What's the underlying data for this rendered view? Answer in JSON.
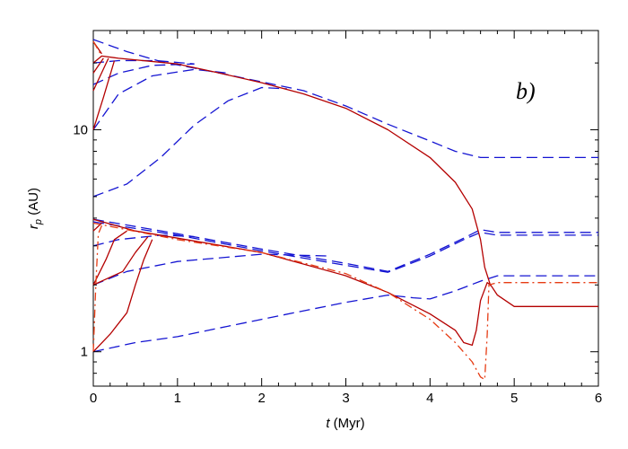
{
  "chart_data": {
    "type": "line",
    "panel_label": "b)",
    "xlabel_var": "t",
    "xlabel_unit": " (Myr)",
    "ylabel_var": "r",
    "ylabel_sub": "p",
    "ylabel_unit": " (AU)",
    "xlim": [
      0,
      6
    ],
    "ylim": [
      0.7,
      28
    ],
    "yscale": "log",
    "x_ticks": [
      "0",
      "1",
      "2",
      "3",
      "4",
      "5",
      "6"
    ],
    "y_ticks": [
      {
        "value": 1,
        "label": "1"
      },
      {
        "value": 10,
        "label": "10"
      }
    ],
    "colors": {
      "dashed": "#1414d2",
      "solid": "#b40000",
      "dashdot": "#e63c14"
    },
    "series": [
      {
        "style": "dashed",
        "points": [
          [
            0,
            25.5
          ],
          [
            0.4,
            22.5
          ],
          [
            0.8,
            20.3
          ],
          [
            1.5,
            18.0
          ],
          [
            2.5,
            15.0
          ],
          [
            3.0,
            12.8
          ],
          [
            3.5,
            10.6
          ],
          [
            4.0,
            8.9
          ],
          [
            4.3,
            8.0
          ],
          [
            4.6,
            7.5
          ],
          [
            5.0,
            7.5
          ],
          [
            6.0,
            7.5
          ]
        ]
      },
      {
        "style": "dashed",
        "points": [
          [
            0,
            20.0
          ],
          [
            0.3,
            20.5
          ],
          [
            0.75,
            20.5
          ],
          [
            1.2,
            19.8
          ]
        ]
      },
      {
        "style": "dashed",
        "points": [
          [
            0,
            16.0
          ],
          [
            0.3,
            18.0
          ],
          [
            0.7,
            19.5
          ],
          [
            1.2,
            19.8
          ]
        ]
      },
      {
        "style": "dashed",
        "points": [
          [
            0,
            10.0
          ],
          [
            0.3,
            14.5
          ],
          [
            0.7,
            17.5
          ],
          [
            1.2,
            18.7
          ],
          [
            1.6,
            18.0
          ]
        ]
      },
      {
        "style": "dashed",
        "points": [
          [
            0,
            5.0
          ],
          [
            0.4,
            5.7
          ],
          [
            0.8,
            7.5
          ],
          [
            1.2,
            10.5
          ],
          [
            1.6,
            13.5
          ],
          [
            2.0,
            15.5
          ],
          [
            2.3,
            15.3
          ]
        ]
      },
      {
        "style": "dashed",
        "points": [
          [
            0,
            3.95
          ],
          [
            1.0,
            3.4
          ],
          [
            2.0,
            2.9
          ],
          [
            3.0,
            2.5
          ],
          [
            3.5,
            2.3
          ],
          [
            4.0,
            2.75
          ],
          [
            4.4,
            3.25
          ],
          [
            4.6,
            3.55
          ],
          [
            4.8,
            3.45
          ],
          [
            6.0,
            3.45
          ]
        ]
      },
      {
        "style": "dashed",
        "points": [
          [
            0,
            3.85
          ],
          [
            1.0,
            3.35
          ],
          [
            2.0,
            2.85
          ],
          [
            3.0,
            2.45
          ],
          [
            3.5,
            2.28
          ],
          [
            4.0,
            2.7
          ],
          [
            4.4,
            3.2
          ],
          [
            4.6,
            3.45
          ],
          [
            4.8,
            3.35
          ],
          [
            6.0,
            3.35
          ]
        ]
      },
      {
        "style": "dashed",
        "points": [
          [
            0,
            3.0
          ],
          [
            0.3,
            3.2
          ],
          [
            0.8,
            3.35
          ],
          [
            1.2,
            3.3
          ]
        ]
      },
      {
        "style": "dashed",
        "points": [
          [
            0,
            2.0
          ],
          [
            0.4,
            2.3
          ],
          [
            1.0,
            2.55
          ],
          [
            2.0,
            2.75
          ],
          [
            2.8,
            2.7
          ]
        ]
      },
      {
        "style": "dashed",
        "points": [
          [
            0,
            1.0
          ],
          [
            0.5,
            1.1
          ],
          [
            1.0,
            1.17
          ],
          [
            1.5,
            1.28
          ],
          [
            2.0,
            1.4
          ],
          [
            2.5,
            1.53
          ],
          [
            3.0,
            1.67
          ],
          [
            3.5,
            1.8
          ],
          [
            3.8,
            1.75
          ],
          [
            4.0,
            1.73
          ],
          [
            4.3,
            1.88
          ],
          [
            4.6,
            2.08
          ],
          [
            4.8,
            2.2
          ],
          [
            6.0,
            2.2
          ]
        ]
      },
      {
        "style": "solid",
        "points": [
          [
            0,
            20.0
          ],
          [
            0.1,
            21.5
          ],
          [
            0.3,
            21.0
          ],
          [
            1.0,
            19.8
          ],
          [
            1.5,
            18.0
          ],
          [
            2.0,
            16.3
          ],
          [
            2.5,
            14.5
          ],
          [
            3.0,
            12.5
          ],
          [
            3.5,
            10.0
          ],
          [
            4.0,
            7.5
          ],
          [
            4.3,
            5.8
          ],
          [
            4.5,
            4.4
          ],
          [
            4.6,
            3.2
          ],
          [
            4.65,
            2.4
          ],
          [
            4.72,
            1.98
          ]
        ]
      },
      {
        "style": "solid",
        "points": [
          [
            0,
            25.0
          ],
          [
            0.1,
            22.0
          ]
        ]
      },
      {
        "style": "solid",
        "points": [
          [
            0,
            18.0
          ],
          [
            0.12,
            21.0
          ]
        ]
      },
      {
        "style": "solid",
        "points": [
          [
            0,
            15.0
          ],
          [
            0.18,
            21.0
          ]
        ]
      },
      {
        "style": "solid",
        "points": [
          [
            0,
            10.0
          ],
          [
            0.12,
            14.0
          ],
          [
            0.25,
            20.5
          ]
        ]
      },
      {
        "style": "solid",
        "points": [
          [
            0,
            3.95
          ],
          [
            0.5,
            3.5
          ],
          [
            1.0,
            3.25
          ],
          [
            2.0,
            2.8
          ],
          [
            3.0,
            2.2
          ],
          [
            3.5,
            1.85
          ],
          [
            4.0,
            1.48
          ],
          [
            4.3,
            1.25
          ],
          [
            4.4,
            1.1
          ],
          [
            4.5,
            1.07
          ],
          [
            4.55,
            1.25
          ],
          [
            4.6,
            1.7
          ],
          [
            4.68,
            2.05
          ],
          [
            4.72,
            2.0
          ],
          [
            4.8,
            1.8
          ],
          [
            5.0,
            1.6
          ],
          [
            6.0,
            1.6
          ]
        ]
      },
      {
        "style": "solid",
        "points": [
          [
            0,
            2.0
          ],
          [
            0.15,
            2.6
          ],
          [
            0.25,
            3.2
          ],
          [
            0.4,
            3.5
          ]
        ]
      },
      {
        "style": "solid",
        "points": [
          [
            0,
            2.0
          ],
          [
            0.35,
            2.3
          ],
          [
            0.5,
            2.8
          ],
          [
            0.65,
            3.3
          ]
        ]
      },
      {
        "style": "solid",
        "points": [
          [
            0,
            1.0
          ],
          [
            0.2,
            1.2
          ],
          [
            0.4,
            1.5
          ],
          [
            0.5,
            2.0
          ],
          [
            0.6,
            2.6
          ],
          [
            0.7,
            3.2
          ]
        ]
      },
      {
        "style": "solid",
        "points": [
          [
            0,
            3.5
          ],
          [
            0.1,
            3.8
          ]
        ]
      },
      {
        "style": "dashdot",
        "points": [
          [
            0,
            25.0
          ],
          [
            0.1,
            21.5
          ]
        ]
      },
      {
        "style": "dashdot",
        "points": [
          [
            0,
            1.0
          ],
          [
            0.03,
            2.0
          ],
          [
            0.06,
            3.4
          ],
          [
            0.1,
            3.7
          ]
        ]
      },
      {
        "style": "dashdot",
        "points": [
          [
            0,
            3.8
          ],
          [
            1.0,
            3.2
          ],
          [
            2.0,
            2.8
          ],
          [
            3.0,
            2.25
          ],
          [
            3.5,
            1.85
          ],
          [
            4.0,
            1.4
          ],
          [
            4.3,
            1.1
          ],
          [
            4.5,
            0.9
          ],
          [
            4.6,
            0.77
          ],
          [
            4.65,
            0.75
          ],
          [
            4.68,
            1.2
          ],
          [
            4.7,
            2.0
          ],
          [
            4.8,
            2.05
          ],
          [
            6.0,
            2.05
          ]
        ]
      }
    ]
  }
}
